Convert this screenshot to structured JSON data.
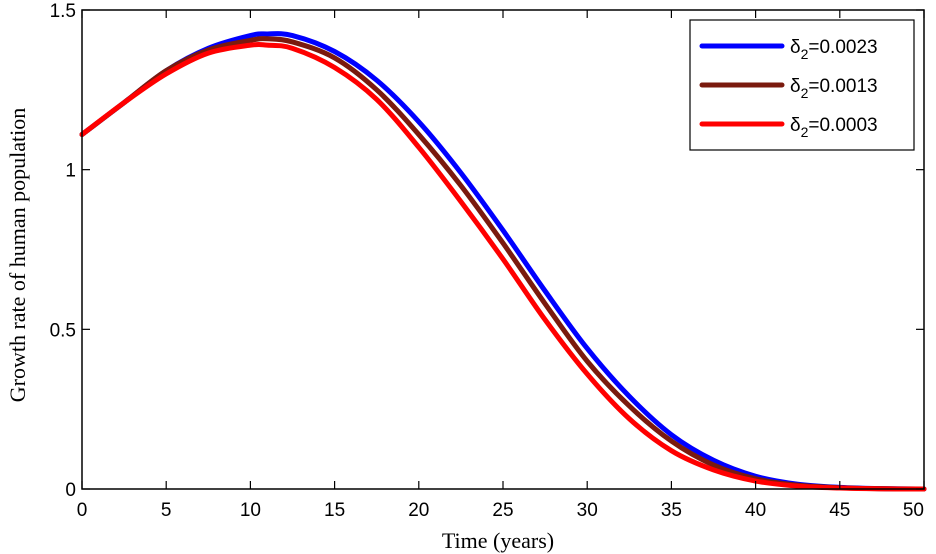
{
  "chart_data": {
    "type": "line",
    "title": "",
    "xlabel": "Time (years)",
    "ylabel": "Growth rate of human population",
    "xlim": [
      0,
      50
    ],
    "ylim": [
      0,
      1.5
    ],
    "xticks": [
      0,
      5,
      10,
      15,
      20,
      25,
      30,
      35,
      40,
      45,
      50
    ],
    "yticks": [
      0,
      0.5,
      1,
      1.5
    ],
    "xtick_labels": [
      "0",
      "5",
      "10",
      "15",
      "20",
      "25",
      "30",
      "35",
      "40",
      "45",
      "50"
    ],
    "ytick_labels": [
      "0",
      "0.5",
      "1",
      "1.5"
    ],
    "grid": false,
    "legend_position": "top-right",
    "series": [
      {
        "name": "δ2=0.0023",
        "legend_symbol": "δ",
        "legend_sub": "2",
        "legend_value": "=0.0023",
        "color": "#0000ff",
        "x": [
          0,
          2.5,
          5,
          7.5,
          10,
          11,
          12.5,
          15,
          17.5,
          20,
          22.5,
          25,
          27.5,
          30,
          32.5,
          35,
          37.5,
          40,
          42.5,
          45,
          47.5,
          50
        ],
        "y": [
          1.11,
          1.21,
          1.31,
          1.38,
          1.42,
          1.425,
          1.42,
          1.37,
          1.28,
          1.15,
          0.99,
          0.81,
          0.62,
          0.44,
          0.29,
          0.17,
          0.09,
          0.04,
          0.015,
          0.005,
          0.001,
          0
        ]
      },
      {
        "name": "δ2=0.0013",
        "legend_symbol": "δ",
        "legend_sub": "2",
        "legend_value": "=0.0013",
        "color": "#7a1a0e",
        "x": [
          0,
          2.5,
          5,
          7.5,
          10,
          11,
          12.5,
          15,
          17.5,
          20,
          22.5,
          25,
          27.5,
          30,
          32.5,
          35,
          37.5,
          40,
          42.5,
          45,
          47.5,
          50
        ],
        "y": [
          1.11,
          1.21,
          1.31,
          1.375,
          1.405,
          1.41,
          1.4,
          1.35,
          1.25,
          1.11,
          0.95,
          0.77,
          0.58,
          0.4,
          0.26,
          0.15,
          0.075,
          0.032,
          0.012,
          0.004,
          0.001,
          0
        ]
      },
      {
        "name": "δ2=0.0003",
        "legend_symbol": "δ",
        "legend_sub": "2",
        "legend_value": "=0.0003",
        "color": "#ff0000",
        "x": [
          0,
          2.5,
          5,
          7.5,
          10,
          11,
          12.5,
          15,
          17.5,
          20,
          22.5,
          25,
          27.5,
          30,
          32.5,
          35,
          37.5,
          40,
          42.5,
          45,
          47.5,
          50
        ],
        "y": [
          1.11,
          1.21,
          1.3,
          1.365,
          1.39,
          1.39,
          1.38,
          1.32,
          1.22,
          1.07,
          0.9,
          0.72,
          0.53,
          0.36,
          0.22,
          0.12,
          0.06,
          0.025,
          0.009,
          0.003,
          0.0005,
          0
        ]
      }
    ]
  }
}
